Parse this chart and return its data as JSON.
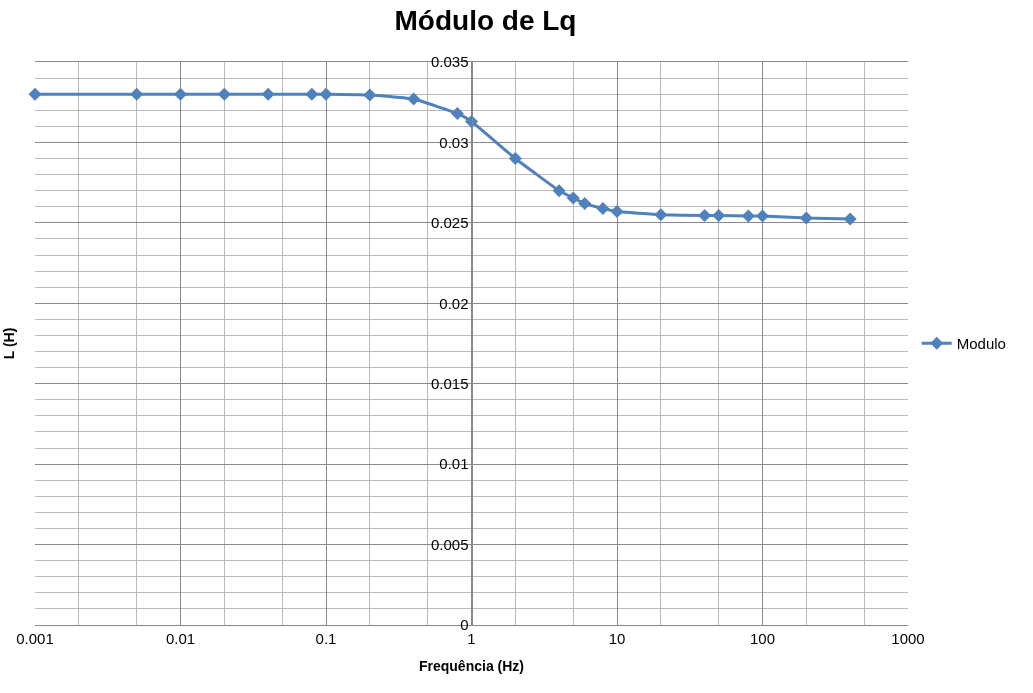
{
  "chart_data": {
    "type": "line",
    "title": "Módulo de Lq",
    "xlabel": "Frequência (Hz)",
    "ylabel": "L (H)",
    "x": [
      0.001,
      0.005,
      0.01,
      0.02,
      0.04,
      0.08,
      0.1,
      0.2,
      0.4,
      0.8,
      1,
      2,
      4,
      5,
      6,
      8,
      10,
      20,
      40,
      50,
      80,
      100,
      200,
      400
    ],
    "series": [
      {
        "name": "Modulo",
        "color": "#4f81bd",
        "values": [
          0.033,
          0.033,
          0.033,
          0.033,
          0.033,
          0.033,
          0.033,
          0.03295,
          0.0327,
          0.0318,
          0.0313,
          0.029,
          0.027,
          0.02655,
          0.0262,
          0.0259,
          0.0257,
          0.0255,
          0.02545,
          0.02545,
          0.02543,
          0.02543,
          0.0253,
          0.02524
        ]
      }
    ],
    "log": "x",
    "xlim": [
      0.001,
      1000
    ],
    "xticks": [
      0.001,
      0.01,
      0.1,
      1,
      10,
      100,
      1000
    ],
    "ylim": [
      0,
      0.035
    ],
    "yticks": [
      0,
      0.005,
      0.01,
      0.015,
      0.02,
      0.025,
      0.03,
      0.035
    ],
    "grid": true,
    "legend": "right",
    "marker": "diamond",
    "line_style": "solid"
  }
}
